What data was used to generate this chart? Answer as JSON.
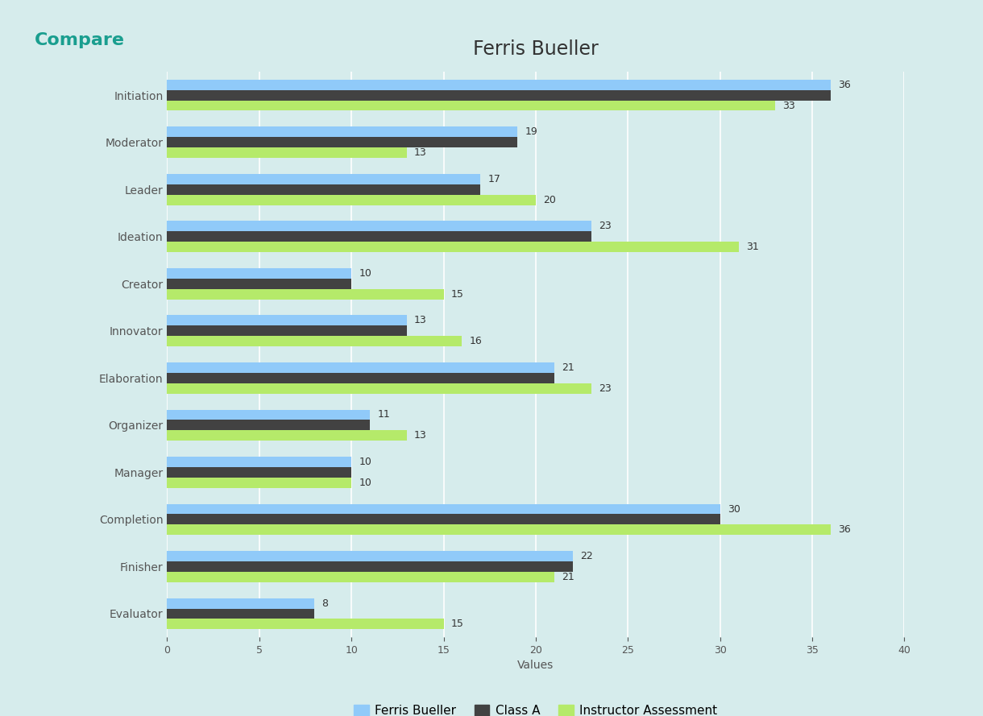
{
  "title": "Ferris Bueller",
  "categories": [
    "Initiation",
    "Moderator",
    "Leader",
    "Ideation",
    "Creator",
    "Innovator",
    "Elaboration",
    "Organizer",
    "Manager",
    "Completion",
    "Finisher",
    "Evaluator"
  ],
  "ferris_bueller": [
    36,
    19,
    17,
    23,
    10,
    13,
    21,
    11,
    10,
    30,
    22,
    8
  ],
  "class_a": [
    36,
    19,
    17,
    23,
    10,
    13,
    21,
    11,
    10,
    30,
    22,
    8
  ],
  "instructor_assessment": [
    33,
    13,
    20,
    31,
    15,
    16,
    23,
    13,
    10,
    36,
    21,
    15
  ],
  "ferris_color": "#90CAF9",
  "class_a_color": "#424242",
  "instructor_color": "#B5EA6A",
  "background_color": "#D6ECEC",
  "plot_bg_color": "#D6ECEC",
  "xlabel": "Values",
  "xlim": [
    0,
    40
  ],
  "xticks": [
    0,
    5,
    10,
    15,
    20,
    25,
    30,
    35,
    40
  ],
  "bar_height": 0.22,
  "title_fontsize": 17,
  "label_fontsize": 10,
  "tick_fontsize": 9,
  "value_fontsize": 9,
  "legend_labels": [
    "Ferris Bueller",
    "Class A",
    "Instructor Assessment"
  ],
  "header_text": "Compare",
  "header_color": "#1A9E8F",
  "grid_color": "#FFFFFF",
  "text_color": "#555555",
  "value_text_color": "#333333"
}
